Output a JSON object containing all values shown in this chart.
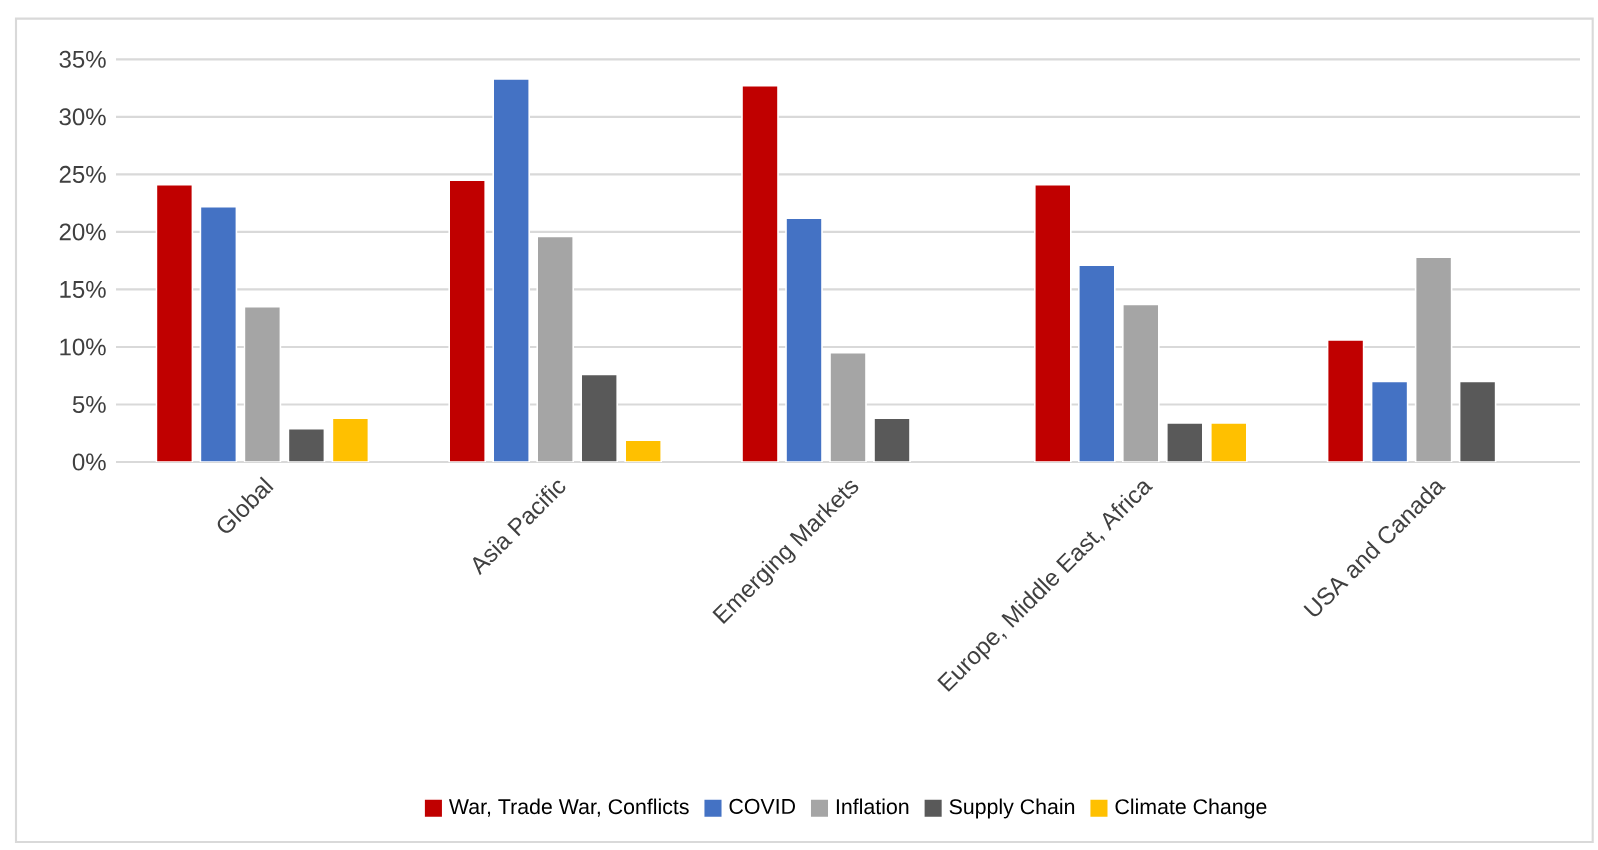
{
  "chart_data": {
    "type": "bar",
    "categories": [
      "Global",
      "Asia Pacific",
      "Emerging Markets",
      "Europe, Middle East, Africa",
      "USA and Canada"
    ],
    "series": [
      {
        "name": "War, Trade War, Conflicts",
        "color": "#c00000",
        "values": [
          24.1,
          24.5,
          32.7,
          24.1,
          10.6
        ]
      },
      {
        "name": "COVID",
        "color": "#4472c4",
        "values": [
          22.2,
          33.3,
          21.2,
          17.1,
          7.0
        ]
      },
      {
        "name": "Inflation",
        "color": "#a5a5a5",
        "values": [
          13.5,
          19.6,
          9.5,
          13.7,
          17.8
        ]
      },
      {
        "name": "Supply Chain",
        "color": "#595959",
        "values": [
          2.9,
          7.6,
          3.8,
          3.4,
          7.0
        ]
      },
      {
        "name": "Climate Change",
        "color": "#ffc000",
        "values": [
          3.8,
          1.9,
          null,
          3.4,
          null
        ]
      }
    ],
    "ylim": [
      0,
      35
    ],
    "yticks": [
      {
        "value": 0,
        "label": "0%"
      },
      {
        "value": 5,
        "label": "5%"
      },
      {
        "value": 10,
        "label": "10%"
      },
      {
        "value": 15,
        "label": "15%"
      },
      {
        "value": 20,
        "label": "20%"
      },
      {
        "value": 25,
        "label": "25%"
      },
      {
        "value": 30,
        "label": "30%"
      },
      {
        "value": 35,
        "label": "35%"
      }
    ],
    "grid": "y",
    "legend": "bottom"
  }
}
